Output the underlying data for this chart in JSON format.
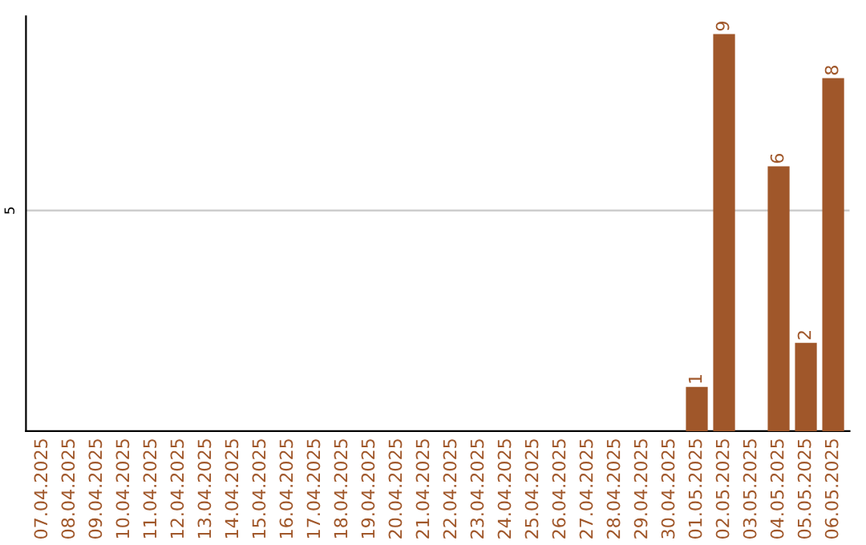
{
  "chart_data": {
    "type": "bar",
    "categories": [
      "07.04.2025",
      "08.04.2025",
      "09.04.2025",
      "10.04.2025",
      "11.04.2025",
      "12.04.2025",
      "13.04.2025",
      "14.04.2025",
      "15.04.2025",
      "16.04.2025",
      "17.04.2025",
      "18.04.2025",
      "19.04.2025",
      "20.04.2025",
      "21.04.2025",
      "22.04.2025",
      "23.04.2025",
      "24.04.2025",
      "25.04.2025",
      "26.04.2025",
      "27.04.2025",
      "28.04.2025",
      "29.04.2025",
      "30.04.2025",
      "01.05.2025",
      "02.05.2025",
      "03.05.2025",
      "04.05.2025",
      "05.05.2025",
      "06.05.2025"
    ],
    "values": [
      null,
      null,
      null,
      null,
      null,
      null,
      null,
      null,
      null,
      null,
      null,
      null,
      null,
      null,
      null,
      null,
      null,
      null,
      null,
      null,
      null,
      null,
      null,
      null,
      1,
      9,
      null,
      6,
      2,
      8
    ],
    "data_labels": true,
    "color": "#a0572a",
    "ylim": [
      0,
      9.4
    ],
    "ref_lines": [
      {
        "axis": "y",
        "value": 5,
        "label": "5",
        "color": "#c8c8c8"
      }
    ]
  }
}
